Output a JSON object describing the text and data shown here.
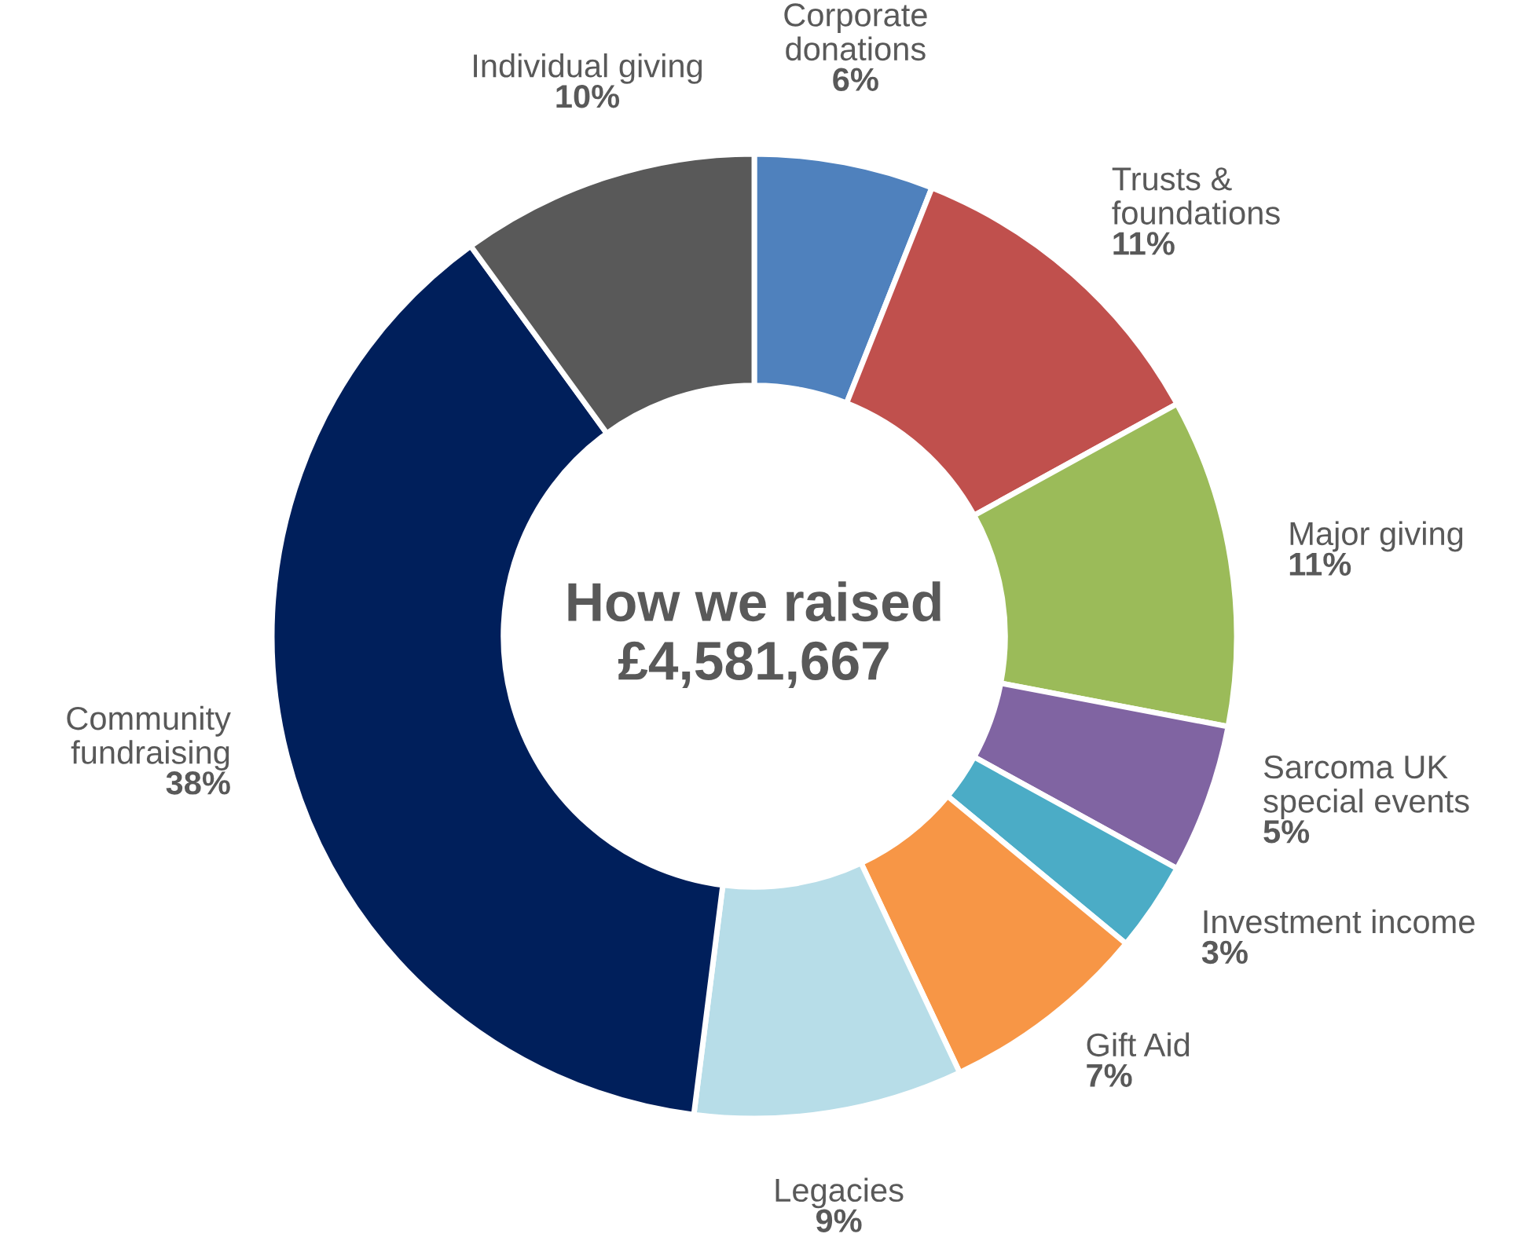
{
  "chart_data": {
    "type": "donut",
    "title": "How we raised\n£4,581,667",
    "categories": [
      "Corporate\ndonations",
      "Trusts &\nfoundations",
      "Major giving",
      "Sarcoma UK\nspecial events",
      "Investment income",
      "Gift Aid",
      "Legacies",
      "Community\nfundraising",
      "Individual giving"
    ],
    "values": [
      6,
      11,
      11,
      5,
      3,
      7,
      9,
      38,
      10
    ],
    "colors": [
      "#4f81bd",
      "#c0504d",
      "#9bbb59",
      "#8064a2",
      "#4bacc6",
      "#f79646",
      "#b7dde8",
      "#001f5b",
      "#595959"
    ],
    "value_labels": [
      "6%",
      "11%",
      "11%",
      "5%",
      "3%",
      "7%",
      "9%",
      "38%",
      "10%"
    ],
    "legend": false
  }
}
